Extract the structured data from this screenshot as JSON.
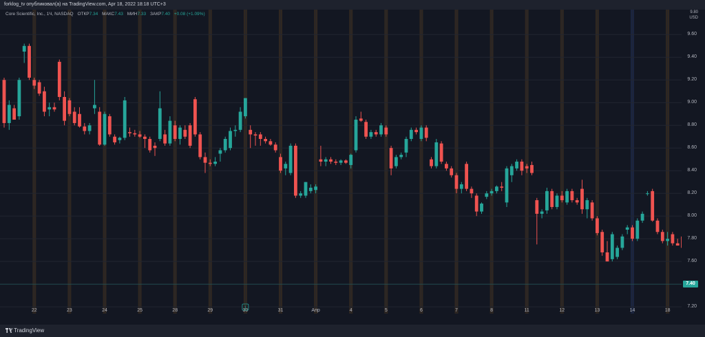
{
  "header": {
    "publish_line": "forklog_tv опубликовал(а) на TradingView.com, Apr 18, 2022 18:18 UTC+3"
  },
  "legend": {
    "symbol": "Core Scientific, Inc., 1Ч, NASDAQ",
    "open_label": "ОТКР",
    "open_value": "7.34",
    "high_label": "МАКС",
    "high_value": "7.43",
    "low_label": "МИН",
    "low_value": "7.33",
    "close_label": "ЗАКР",
    "close_value": "7.40",
    "change": "+0.08 (+1.09%)"
  },
  "footer": {
    "logo_text": "TradingView"
  },
  "colors": {
    "background": "#131722",
    "up": "#26a69a",
    "down": "#ef5350",
    "session_band": "#3a2e22",
    "grid": "#222631",
    "price_line": "#26a69a"
  },
  "chart_data": {
    "type": "candlestick",
    "currency_label": "USD",
    "ylim": [
      7.14,
      9.82
    ],
    "y_ticks": [
      "9.60",
      "9.40",
      "9.20",
      "9.00",
      "8.80",
      "8.60",
      "8.40",
      "8.20",
      "8.00",
      "7.80",
      "7.60",
      "7.40",
      "7.20"
    ],
    "top_tick_partial": "9.80",
    "last_price": "7.40",
    "x_ticks": [
      "22",
      "23",
      "24",
      "25",
      "28",
      "29",
      "30",
      "31",
      "Апр",
      "4",
      "5",
      "6",
      "7",
      "8",
      "11",
      "12",
      "13",
      "14",
      "18"
    ],
    "x_tick_candle_index": [
      6,
      13,
      20,
      27,
      34,
      41,
      48,
      55,
      62,
      69,
      76,
      83,
      90,
      97,
      104,
      111,
      118,
      125,
      132
    ],
    "grid": true,
    "event_marker": {
      "label": "1",
      "candle_index": 48
    },
    "candles": [
      {
        "o": 9.2,
        "h": 9.22,
        "l": 8.78,
        "c": 8.82
      },
      {
        "o": 8.82,
        "h": 9.02,
        "l": 8.76,
        "c": 8.98
      },
      {
        "o": 8.95,
        "h": 8.98,
        "l": 8.85,
        "c": 8.85
      },
      {
        "o": 8.88,
        "h": 9.22,
        "l": 8.85,
        "c": 9.2
      },
      {
        "o": 9.45,
        "h": 9.52,
        "l": 9.35,
        "c": 9.5
      },
      {
        "o": 9.5,
        "h": 9.52,
        "l": 9.2,
        "c": 9.22
      },
      {
        "o": 9.2,
        "h": 9.22,
        "l": 9.12,
        "c": 9.15
      },
      {
        "o": 9.18,
        "h": 9.2,
        "l": 9.06,
        "c": 9.08
      },
      {
        "o": 9.1,
        "h": 9.14,
        "l": 8.88,
        "c": 8.92
      },
      {
        "o": 8.94,
        "h": 9.0,
        "l": 8.88,
        "c": 8.96
      },
      {
        "o": 8.96,
        "h": 9.0,
        "l": 8.92,
        "c": 8.94
      },
      {
        "o": 9.36,
        "h": 9.38,
        "l": 9.02,
        "c": 9.05
      },
      {
        "o": 9.05,
        "h": 9.1,
        "l": 8.8,
        "c": 8.84
      },
      {
        "o": 9.02,
        "h": 9.04,
        "l": 8.88,
        "c": 8.9
      },
      {
        "o": 8.92,
        "h": 8.96,
        "l": 8.8,
        "c": 8.82
      },
      {
        "o": 8.9,
        "h": 8.96,
        "l": 8.78,
        "c": 8.79
      },
      {
        "o": 8.79,
        "h": 8.82,
        "l": 8.72,
        "c": 8.75
      },
      {
        "o": 8.75,
        "h": 8.82,
        "l": 8.72,
        "c": 8.8
      },
      {
        "o": 8.95,
        "h": 9.2,
        "l": 8.9,
        "c": 8.98
      },
      {
        "o": 8.92,
        "h": 8.96,
        "l": 8.62,
        "c": 8.63
      },
      {
        "o": 8.63,
        "h": 8.92,
        "l": 8.62,
        "c": 8.9
      },
      {
        "o": 8.88,
        "h": 8.9,
        "l": 8.7,
        "c": 8.72
      },
      {
        "o": 8.7,
        "h": 8.72,
        "l": 8.63,
        "c": 8.65
      },
      {
        "o": 8.67,
        "h": 8.7,
        "l": 8.64,
        "c": 8.69
      },
      {
        "o": 8.69,
        "h": 9.05,
        "l": 8.67,
        "c": 9.02
      },
      {
        "o": 8.74,
        "h": 8.78,
        "l": 8.7,
        "c": 8.73
      },
      {
        "o": 8.73,
        "h": 8.76,
        "l": 8.7,
        "c": 8.72
      },
      {
        "o": 8.72,
        "h": 8.75,
        "l": 8.69,
        "c": 8.7
      },
      {
        "o": 8.7,
        "h": 8.72,
        "l": 8.6,
        "c": 8.68
      },
      {
        "o": 8.68,
        "h": 8.7,
        "l": 8.56,
        "c": 8.58
      },
      {
        "o": 8.62,
        "h": 8.65,
        "l": 8.53,
        "c": 8.6
      },
      {
        "o": 8.68,
        "h": 9.1,
        "l": 8.66,
        "c": 8.95
      },
      {
        "o": 8.72,
        "h": 8.76,
        "l": 8.62,
        "c": 8.64
      },
      {
        "o": 8.64,
        "h": 8.88,
        "l": 8.62,
        "c": 8.84
      },
      {
        "o": 8.8,
        "h": 8.84,
        "l": 8.66,
        "c": 8.68
      },
      {
        "o": 8.68,
        "h": 8.8,
        "l": 8.63,
        "c": 8.78
      },
      {
        "o": 8.76,
        "h": 8.8,
        "l": 8.68,
        "c": 8.7
      },
      {
        "o": 8.8,
        "h": 8.82,
        "l": 8.6,
        "c": 8.62
      },
      {
        "o": 9.03,
        "h": 9.05,
        "l": 8.7,
        "c": 8.72
      },
      {
        "o": 8.72,
        "h": 8.74,
        "l": 8.5,
        "c": 8.52
      },
      {
        "o": 8.52,
        "h": 8.56,
        "l": 8.38,
        "c": 8.47
      },
      {
        "o": 8.47,
        "h": 8.5,
        "l": 8.44,
        "c": 8.46
      },
      {
        "o": 8.46,
        "h": 8.52,
        "l": 8.44,
        "c": 8.48
      },
      {
        "o": 8.55,
        "h": 8.6,
        "l": 8.48,
        "c": 8.58
      },
      {
        "o": 8.58,
        "h": 8.7,
        "l": 8.56,
        "c": 8.68
      },
      {
        "o": 8.6,
        "h": 8.78,
        "l": 8.58,
        "c": 8.75
      },
      {
        "o": 8.75,
        "h": 8.8,
        "l": 8.7,
        "c": 8.76
      },
      {
        "o": 8.76,
        "h": 8.96,
        "l": 8.74,
        "c": 8.92
      },
      {
        "o": 8.88,
        "h": 9.04,
        "l": 8.86,
        "c": 9.04
      },
      {
        "o": 8.76,
        "h": 8.8,
        "l": 8.6,
        "c": 8.72
      },
      {
        "o": 8.72,
        "h": 8.74,
        "l": 8.62,
        "c": 8.71
      },
      {
        "o": 8.72,
        "h": 8.74,
        "l": 8.62,
        "c": 8.68
      },
      {
        "o": 8.68,
        "h": 8.7,
        "l": 8.64,
        "c": 8.66
      },
      {
        "o": 8.66,
        "h": 8.68,
        "l": 8.62,
        "c": 8.63
      },
      {
        "o": 8.63,
        "h": 8.65,
        "l": 8.56,
        "c": 8.58
      },
      {
        "o": 8.52,
        "h": 8.55,
        "l": 8.38,
        "c": 8.4
      },
      {
        "o": 8.42,
        "h": 8.48,
        "l": 8.36,
        "c": 8.46
      },
      {
        "o": 8.38,
        "h": 8.64,
        "l": 8.36,
        "c": 8.62
      },
      {
        "o": 8.62,
        "h": 8.64,
        "l": 8.16,
        "c": 8.18
      },
      {
        "o": 8.18,
        "h": 8.22,
        "l": 8.16,
        "c": 8.2
      },
      {
        "o": 8.18,
        "h": 8.3,
        "l": 8.16,
        "c": 8.3
      },
      {
        "o": 8.22,
        "h": 8.28,
        "l": 8.2,
        "c": 8.25
      },
      {
        "o": 8.23,
        "h": 8.28,
        "l": 8.2,
        "c": 8.26
      },
      {
        "o": 8.5,
        "h": 8.62,
        "l": 8.44,
        "c": 8.48
      },
      {
        "o": 8.48,
        "h": 8.52,
        "l": 8.44,
        "c": 8.5
      },
      {
        "o": 8.5,
        "h": 8.52,
        "l": 8.46,
        "c": 8.48
      },
      {
        "o": 8.48,
        "h": 8.5,
        "l": 8.45,
        "c": 8.47
      },
      {
        "o": 8.47,
        "h": 8.5,
        "l": 8.45,
        "c": 8.49
      },
      {
        "o": 8.49,
        "h": 8.5,
        "l": 8.46,
        "c": 8.47
      },
      {
        "o": 8.45,
        "h": 8.55,
        "l": 8.42,
        "c": 8.54
      },
      {
        "o": 8.58,
        "h": 8.88,
        "l": 8.56,
        "c": 8.85
      },
      {
        "o": 8.86,
        "h": 8.92,
        "l": 8.83,
        "c": 8.84
      },
      {
        "o": 8.83,
        "h": 8.85,
        "l": 8.68,
        "c": 8.7
      },
      {
        "o": 8.7,
        "h": 8.76,
        "l": 8.68,
        "c": 8.74
      },
      {
        "o": 8.74,
        "h": 8.76,
        "l": 8.7,
        "c": 8.72
      },
      {
        "o": 8.72,
        "h": 8.82,
        "l": 8.7,
        "c": 8.8
      },
      {
        "o": 8.78,
        "h": 8.8,
        "l": 8.7,
        "c": 8.72
      },
      {
        "o": 8.6,
        "h": 8.62,
        "l": 8.36,
        "c": 8.42
      },
      {
        "o": 8.44,
        "h": 8.54,
        "l": 8.42,
        "c": 8.52
      },
      {
        "o": 8.52,
        "h": 8.56,
        "l": 8.5,
        "c": 8.54
      },
      {
        "o": 8.56,
        "h": 8.7,
        "l": 8.52,
        "c": 8.68
      },
      {
        "o": 8.68,
        "h": 8.78,
        "l": 8.66,
        "c": 8.76
      },
      {
        "o": 8.76,
        "h": 8.78,
        "l": 8.72,
        "c": 8.74
      },
      {
        "o": 8.68,
        "h": 8.8,
        "l": 8.66,
        "c": 8.78
      },
      {
        "o": 8.78,
        "h": 8.8,
        "l": 8.66,
        "c": 8.69
      },
      {
        "o": 8.5,
        "h": 8.52,
        "l": 8.42,
        "c": 8.44
      },
      {
        "o": 8.44,
        "h": 8.68,
        "l": 8.42,
        "c": 8.65
      },
      {
        "o": 8.64,
        "h": 8.66,
        "l": 8.46,
        "c": 8.48
      },
      {
        "o": 8.46,
        "h": 8.48,
        "l": 8.4,
        "c": 8.42
      },
      {
        "o": 8.42,
        "h": 8.44,
        "l": 8.34,
        "c": 8.36
      },
      {
        "o": 8.36,
        "h": 8.38,
        "l": 8.2,
        "c": 8.24
      },
      {
        "o": 8.24,
        "h": 8.3,
        "l": 8.2,
        "c": 8.28
      },
      {
        "o": 8.46,
        "h": 8.48,
        "l": 8.22,
        "c": 8.24
      },
      {
        "o": 8.24,
        "h": 8.26,
        "l": 8.16,
        "c": 8.2
      },
      {
        "o": 8.18,
        "h": 8.2,
        "l": 8.0,
        "c": 8.04
      },
      {
        "o": 8.04,
        "h": 8.12,
        "l": 8.02,
        "c": 8.11
      },
      {
        "o": 8.17,
        "h": 8.22,
        "l": 8.15,
        "c": 8.2
      },
      {
        "o": 8.2,
        "h": 8.24,
        "l": 8.18,
        "c": 8.22
      },
      {
        "o": 8.22,
        "h": 8.27,
        "l": 8.2,
        "c": 8.26
      },
      {
        "o": 8.26,
        "h": 8.3,
        "l": 8.22,
        "c": 8.25
      },
      {
        "o": 8.12,
        "h": 8.44,
        "l": 8.08,
        "c": 8.42
      },
      {
        "o": 8.36,
        "h": 8.46,
        "l": 8.3,
        "c": 8.44
      },
      {
        "o": 8.42,
        "h": 8.5,
        "l": 8.4,
        "c": 8.48
      },
      {
        "o": 8.48,
        "h": 8.5,
        "l": 8.36,
        "c": 8.4
      },
      {
        "o": 8.44,
        "h": 8.46,
        "l": 8.38,
        "c": 8.42
      },
      {
        "o": 8.45,
        "h": 8.48,
        "l": 8.36,
        "c": 8.38
      },
      {
        "o": 8.14,
        "h": 8.16,
        "l": 7.75,
        "c": 8.02
      },
      {
        "o": 8.02,
        "h": 8.06,
        "l": 7.98,
        "c": 8.04
      },
      {
        "o": 8.05,
        "h": 8.25,
        "l": 8.02,
        "c": 8.22
      },
      {
        "o": 8.22,
        "h": 8.24,
        "l": 8.06,
        "c": 8.08
      },
      {
        "o": 8.08,
        "h": 8.2,
        "l": 8.06,
        "c": 8.18
      },
      {
        "o": 8.18,
        "h": 8.22,
        "l": 8.12,
        "c": 8.14
      },
      {
        "o": 8.12,
        "h": 8.24,
        "l": 8.1,
        "c": 8.22
      },
      {
        "o": 8.22,
        "h": 8.24,
        "l": 8.12,
        "c": 8.14
      },
      {
        "o": 8.14,
        "h": 8.16,
        "l": 8.1,
        "c": 8.12
      },
      {
        "o": 8.24,
        "h": 8.32,
        "l": 8.02,
        "c": 8.06
      },
      {
        "o": 8.06,
        "h": 8.16,
        "l": 7.98,
        "c": 8.14
      },
      {
        "o": 8.12,
        "h": 8.14,
        "l": 7.96,
        "c": 7.98
      },
      {
        "o": 7.98,
        "h": 8.0,
        "l": 7.83,
        "c": 7.85
      },
      {
        "o": 7.86,
        "h": 7.88,
        "l": 7.65,
        "c": 7.68
      },
      {
        "o": 7.68,
        "h": 7.78,
        "l": 7.6,
        "c": 7.6
      },
      {
        "o": 7.62,
        "h": 7.86,
        "l": 7.6,
        "c": 7.84
      },
      {
        "o": 7.64,
        "h": 7.74,
        "l": 7.62,
        "c": 7.72
      },
      {
        "o": 7.72,
        "h": 7.84,
        "l": 7.7,
        "c": 7.82
      },
      {
        "o": 7.88,
        "h": 7.92,
        "l": 7.84,
        "c": 7.9
      },
      {
        "o": 7.9,
        "h": 7.92,
        "l": 7.78,
        "c": 7.8
      },
      {
        "o": 7.8,
        "h": 7.98,
        "l": 7.78,
        "c": 7.96
      },
      {
        "o": 7.96,
        "h": 8.04,
        "l": 7.94,
        "c": 8.02
      },
      {
        "o": 8.2,
        "h": 8.22,
        "l": 8.18,
        "c": 8.2
      },
      {
        "o": 8.22,
        "h": 8.24,
        "l": 7.95,
        "c": 7.96
      },
      {
        "o": 7.96,
        "h": 7.98,
        "l": 7.84,
        "c": 7.86
      },
      {
        "o": 7.86,
        "h": 7.88,
        "l": 7.76,
        "c": 7.78
      },
      {
        "o": 7.78,
        "h": 7.86,
        "l": 7.74,
        "c": 7.8
      },
      {
        "o": 7.84,
        "h": 7.86,
        "l": 7.74,
        "c": 7.76
      },
      {
        "o": 7.76,
        "h": 7.8,
        "l": 7.74,
        "c": 7.74
      },
      {
        "o": 7.82,
        "h": 7.84,
        "l": 7.7,
        "c": 7.72
      },
      {
        "o": 7.72,
        "h": 7.74,
        "l": 7.68,
        "c": 7.7
      },
      {
        "o": 7.62,
        "h": 7.64,
        "l": 7.58,
        "c": 7.6
      },
      {
        "o": 7.62,
        "h": 7.66,
        "l": 7.3,
        "c": 7.32
      },
      {
        "o": 7.34,
        "h": 7.43,
        "l": 7.33,
        "c": 7.4
      }
    ]
  }
}
